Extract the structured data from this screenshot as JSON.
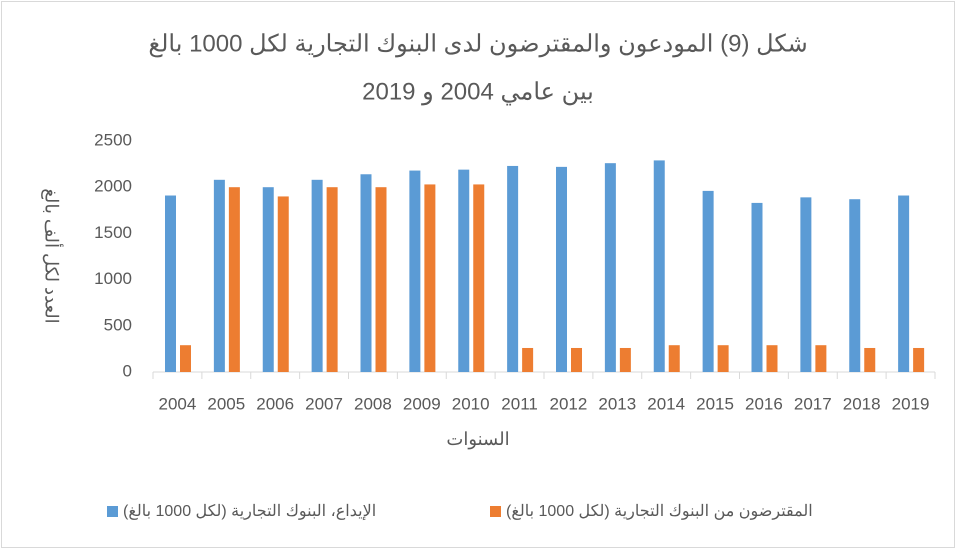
{
  "chart_data": {
    "type": "bar",
    "title": "شكل (9) المودعون والمقترضون لدى البنوك التجارية لكل 1000 بالغ",
    "subtitle": "بين عامي 2004 و 2019",
    "x_label": "السنوات",
    "y_label": "العدد لكل ألف بالغ",
    "categories": [
      "2004",
      "2005",
      "2006",
      "2007",
      "2008",
      "2009",
      "2010",
      "2011",
      "2012",
      "2013",
      "2014",
      "2015",
      "2016",
      "2017",
      "2018",
      "2019"
    ],
    "series": [
      {
        "name": "الإيداع، البنوك التجارية (لكل 1000 بالغ)",
        "color": "#5b9bd5",
        "values": [
          1910,
          2080,
          2000,
          2080,
          2140,
          2180,
          2190,
          2230,
          2220,
          2260,
          2290,
          1960,
          1830,
          1890,
          1870,
          1910
        ]
      },
      {
        "name": "المقترضون من البنوك التجارية (لكل 1000 بالغ)",
        "color": "#ed7d31",
        "values": [
          290,
          2000,
          1900,
          2000,
          2000,
          2030,
          2030,
          260,
          260,
          260,
          290,
          290,
          290,
          290,
          260,
          260
        ]
      }
    ],
    "ylim": [
      0,
      2500
    ],
    "yticks": [
      0,
      500,
      1000,
      1500,
      2000,
      2500
    ],
    "grid": false,
    "legend": "bottom"
  }
}
